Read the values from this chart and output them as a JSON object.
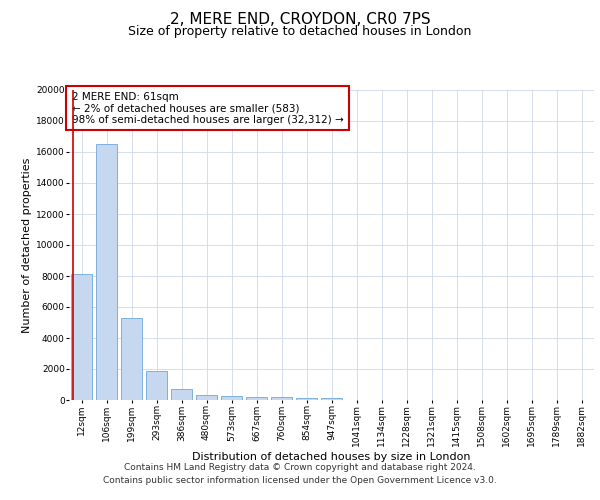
{
  "title": "2, MERE END, CROYDON, CR0 7PS",
  "subtitle": "Size of property relative to detached houses in London",
  "xlabel": "Distribution of detached houses by size in London",
  "ylabel": "Number of detached properties",
  "categories": [
    "12sqm",
    "106sqm",
    "199sqm",
    "293sqm",
    "386sqm",
    "480sqm",
    "573sqm",
    "667sqm",
    "760sqm",
    "854sqm",
    "947sqm",
    "1041sqm",
    "1134sqm",
    "1228sqm",
    "1321sqm",
    "1415sqm",
    "1508sqm",
    "1602sqm",
    "1695sqm",
    "1789sqm",
    "1882sqm"
  ],
  "values": [
    8100,
    16500,
    5300,
    1850,
    700,
    350,
    270,
    200,
    175,
    150,
    100,
    0,
    0,
    0,
    0,
    0,
    0,
    0,
    0,
    0,
    0
  ],
  "bar_color": "#c5d8f0",
  "bar_edge_color": "#6fa8d8",
  "marker_line_color": "#cc0000",
  "annotation_text": "2 MERE END: 61sqm\n← 2% of detached houses are smaller (583)\n98% of semi-detached houses are larger (32,312) →",
  "annotation_box_color": "#ffffff",
  "annotation_box_edge": "#cc0000",
  "ylim": [
    0,
    20000
  ],
  "yticks": [
    0,
    2000,
    4000,
    6000,
    8000,
    10000,
    12000,
    14000,
    16000,
    18000,
    20000
  ],
  "footer_line1": "Contains HM Land Registry data © Crown copyright and database right 2024.",
  "footer_line2": "Contains public sector information licensed under the Open Government Licence v3.0.",
  "background_color": "#ffffff",
  "plot_background_color": "#ffffff",
  "grid_color": "#d0d8e8",
  "title_fontsize": 11,
  "subtitle_fontsize": 9,
  "axis_label_fontsize": 8,
  "tick_fontsize": 6.5,
  "annotation_fontsize": 7.5,
  "footer_fontsize": 6.5
}
